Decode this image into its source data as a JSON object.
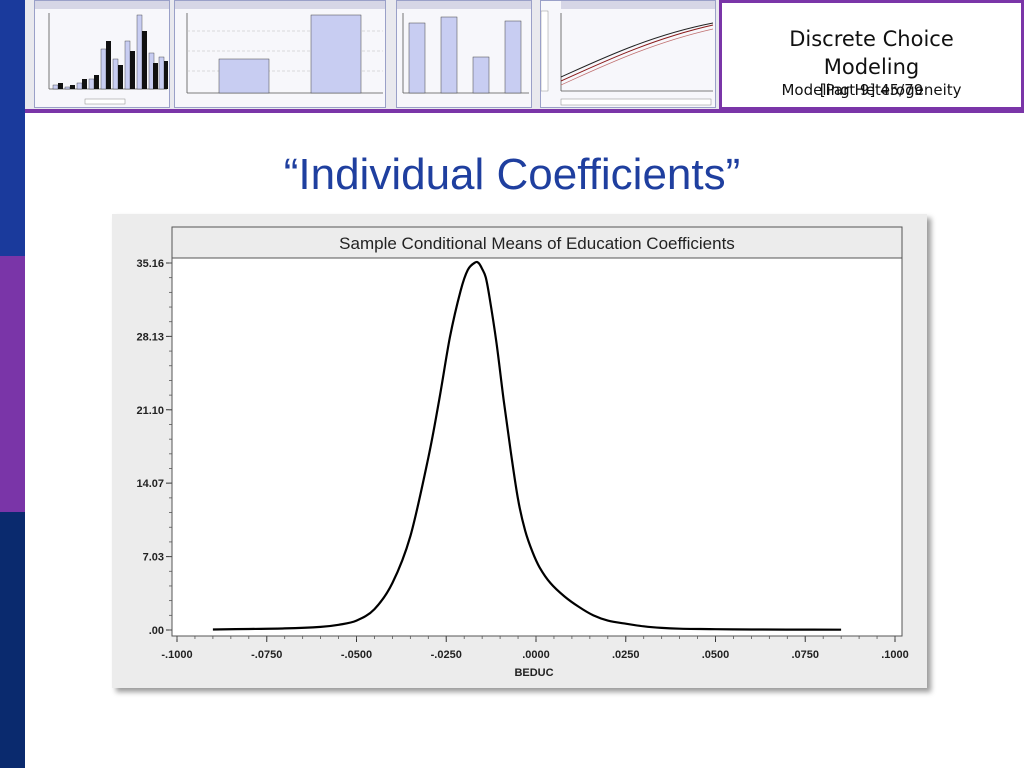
{
  "header": {
    "course_title_line1": "Discrete Choice",
    "course_title_line2": "Modeling",
    "part_label": "[Part 9]   45/79",
    "section_label": "Modeling Heterogeneity"
  },
  "slide": {
    "title": "“Individual Coefficients”"
  },
  "colors": {
    "stripe_top": "#1a3a9c",
    "stripe_mid": "#7a35a8",
    "stripe_bottom": "#0a2a6e",
    "title_text": "#1f3f9f",
    "chart_curve": "#000000",
    "chart_title_bar": "#ececec"
  },
  "chart_data": {
    "type": "line",
    "title": "Sample Conditional Means of Education Coefficients",
    "xlabel": "BEDUC",
    "ylabel": "",
    "xlim": [
      -0.1,
      0.1
    ],
    "ylim": [
      0,
      35.16
    ],
    "x_tick_labels": [
      "-.1000",
      "-.0750",
      "-.0500",
      "-.0250",
      ".0000",
      ".0250",
      ".0500",
      ".0750",
      ".1000"
    ],
    "x_ticks": [
      -0.1,
      -0.075,
      -0.05,
      -0.025,
      0.0,
      0.025,
      0.05,
      0.075,
      0.1
    ],
    "y_tick_labels": [
      ".00",
      "7.03",
      "14.07",
      "21.10",
      "28.13",
      "35.16"
    ],
    "y_ticks": [
      0,
      7.03,
      14.07,
      21.1,
      28.13,
      35.16
    ],
    "grid": false,
    "series": [
      {
        "x": [
          -0.09,
          -0.08,
          -0.07,
          -0.06,
          -0.055,
          -0.05,
          -0.045,
          -0.04,
          -0.035,
          -0.03,
          -0.027,
          -0.024,
          -0.021,
          -0.019,
          -0.017,
          -0.016,
          -0.015,
          -0.014,
          -0.013,
          -0.011,
          -0.009,
          -0.007,
          -0.005,
          -0.003,
          -0.001,
          0.001,
          0.004,
          0.008,
          0.012,
          0.016,
          0.02,
          0.025,
          0.03,
          0.035,
          0.04,
          0.05,
          0.06,
          0.07,
          0.085
        ],
        "y": [
          0.05,
          0.1,
          0.15,
          0.3,
          0.5,
          0.9,
          2.0,
          4.5,
          9.0,
          16.5,
          22.0,
          28.0,
          32.5,
          34.5,
          35.2,
          35.16,
          34.6,
          33.8,
          32.0,
          27.5,
          22.0,
          17.0,
          12.5,
          9.5,
          7.5,
          6.0,
          4.5,
          3.2,
          2.2,
          1.4,
          0.9,
          0.6,
          0.35,
          0.2,
          0.12,
          0.08,
          0.05,
          0.04,
          0.03
        ]
      }
    ]
  }
}
